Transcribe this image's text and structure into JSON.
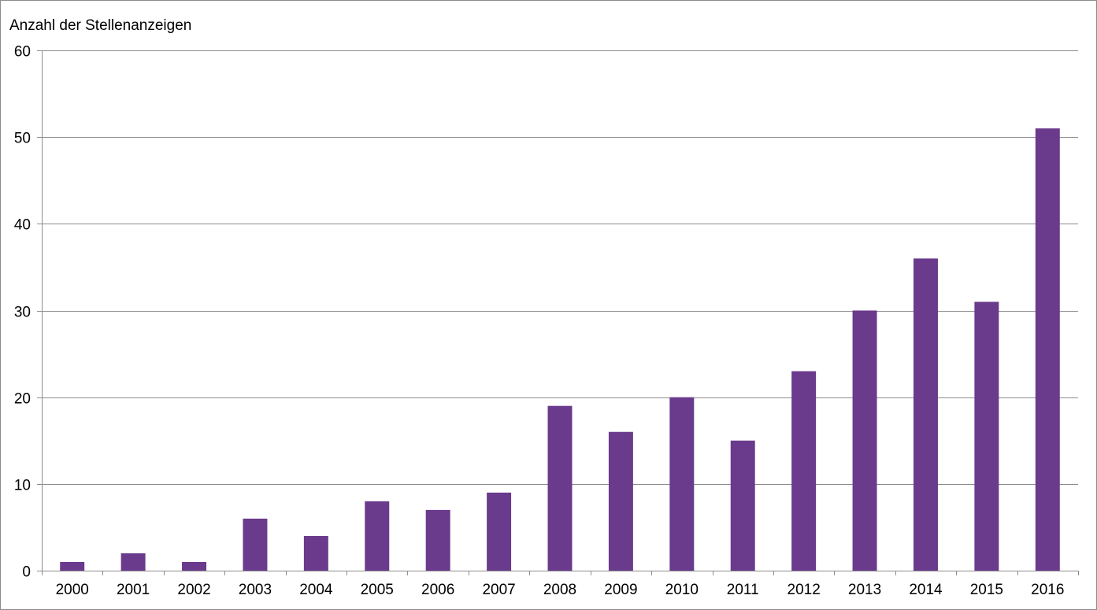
{
  "chart_data": {
    "type": "bar",
    "title": "",
    "xlabel": "",
    "ylabel": "Anzahl der Stellenanzeigen",
    "categories": [
      "2000",
      "2001",
      "2002",
      "2003",
      "2004",
      "2005",
      "2006",
      "2007",
      "2008",
      "2009",
      "2010",
      "2011",
      "2012",
      "2013",
      "2014",
      "2015",
      "2016"
    ],
    "values": [
      1,
      2,
      1,
      6,
      4,
      8,
      7,
      9,
      19,
      16,
      20,
      15,
      23,
      30,
      36,
      31,
      51
    ],
    "ylim": [
      0,
      60
    ],
    "yticks": [
      "0",
      "10",
      "20",
      "30",
      "40",
      "50",
      "60"
    ],
    "grid": true,
    "legend": "none",
    "colors": {
      "bar": "#6a3a8c",
      "grid": "#8c8c8c",
      "axis": "#8c8c8c",
      "border": "#8c8c8c"
    }
  }
}
